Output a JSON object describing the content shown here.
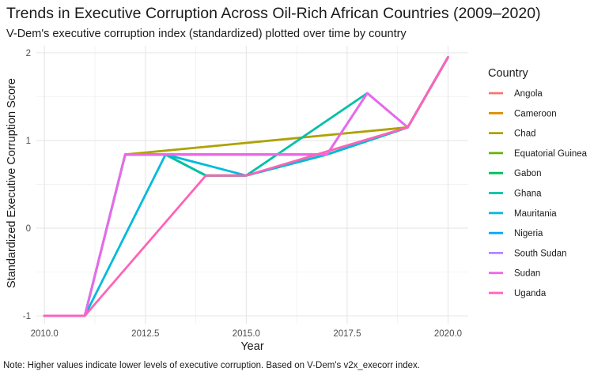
{
  "chart_data": {
    "type": "line",
    "title": "Trends in Executive Corruption Across Oil-Rich African Countries (2009–2020)",
    "subtitle": "V-Dem's executive corruption index (standardized) plotted over time by country",
    "xlabel": "Year",
    "ylabel": "Standardized Executive Corruption Score",
    "caption": "Note: Higher values indicate lower levels of executive corruption. Based on V-Dem's v2x_execorr index.",
    "legend_title": "Country",
    "legend_position": "right",
    "grid": true,
    "xlim": [
      2009.8,
      2020.5
    ],
    "ylim": [
      -1.09,
      2.08
    ],
    "x_ticks": [
      2010,
      2012.5,
      2015,
      2017.5,
      2020
    ],
    "x_tick_labels": [
      "2010.0",
      "2012.5",
      "2015.0",
      "2017.5",
      "2020.0"
    ],
    "y_ticks": [
      -1,
      0,
      1,
      2
    ],
    "y_tick_labels": [
      "-1",
      "0",
      "1",
      "2"
    ],
    "series": [
      {
        "name": "Angola",
        "color": "#F8766D",
        "x": [
          2010,
          2011,
          2012,
          2014,
          2015,
          2017,
          2019,
          2020
        ],
        "y": [
          -1,
          -1,
          0.84,
          0.84,
          0.84,
          0.84,
          1.15,
          1.95
        ]
      },
      {
        "name": "Cameroon",
        "color": "#DB8E00",
        "x": [
          2010,
          2011,
          2012,
          2014,
          2015,
          2017,
          2019,
          2020
        ],
        "y": [
          -1,
          -1,
          0.84,
          0.84,
          0.84,
          0.84,
          1.15,
          1.95
        ]
      },
      {
        "name": "Chad",
        "color": "#AEA200",
        "x": [
          2010,
          2011,
          2012,
          2019,
          2020
        ],
        "y": [
          -1,
          -1,
          0.84,
          1.15,
          1.95
        ]
      },
      {
        "name": "Equatorial Guinea",
        "color": "#64B200",
        "x": [
          2010,
          2011,
          2012,
          2013,
          2014,
          2015,
          2017,
          2019,
          2020
        ],
        "y": [
          -1,
          -1,
          0.84,
          0.84,
          0.6,
          0.6,
          0.84,
          1.15,
          1.95
        ]
      },
      {
        "name": "Gabon",
        "color": "#00BD5C",
        "x": [
          2010,
          2011,
          2012,
          2013,
          2014,
          2015,
          2017,
          2019,
          2020
        ],
        "y": [
          -1,
          -1,
          0.84,
          0.84,
          0.6,
          0.6,
          0.84,
          1.15,
          1.95
        ]
      },
      {
        "name": "Ghana",
        "color": "#00C1A7",
        "x": [
          2010,
          2011,
          2012,
          2013,
          2014,
          2015,
          2018,
          2019,
          2020
        ],
        "y": [
          -1,
          -1,
          0.84,
          0.84,
          0.6,
          0.6,
          1.54,
          1.15,
          1.95
        ]
      },
      {
        "name": "Mauritania",
        "color": "#00BADE",
        "x": [
          2010,
          2011,
          2013,
          2015,
          2017,
          2019,
          2020
        ],
        "y": [
          -1,
          -1,
          0.84,
          0.6,
          0.84,
          1.15,
          1.95
        ]
      },
      {
        "name": "Nigeria",
        "color": "#00A6FF",
        "x": [
          2010,
          2011,
          2012,
          2017,
          2018,
          2019,
          2020
        ],
        "y": [
          -1,
          -1,
          0.84,
          0.84,
          1.54,
          1.15,
          1.95
        ]
      },
      {
        "name": "South Sudan",
        "color": "#B385FF",
        "x": [
          2010,
          2011,
          2012,
          2014,
          2015,
          2017,
          2018,
          2019,
          2020
        ],
        "y": [
          -1,
          -1,
          0.84,
          0.84,
          0.84,
          0.84,
          1.54,
          1.15,
          1.95
        ]
      },
      {
        "name": "Sudan",
        "color": "#EF67EB",
        "x": [
          2010,
          2011,
          2012,
          2014,
          2015,
          2017,
          2018,
          2019,
          2020
        ],
        "y": [
          -1,
          -1,
          0.84,
          0.84,
          0.84,
          0.84,
          1.54,
          1.15,
          1.95
        ]
      },
      {
        "name": "Uganda",
        "color": "#FF63B6",
        "x": [
          2010,
          2011,
          2014,
          2015,
          2019,
          2020
        ],
        "y": [
          -1,
          -1,
          0.6,
          0.6,
          1.15,
          1.95
        ]
      }
    ]
  }
}
